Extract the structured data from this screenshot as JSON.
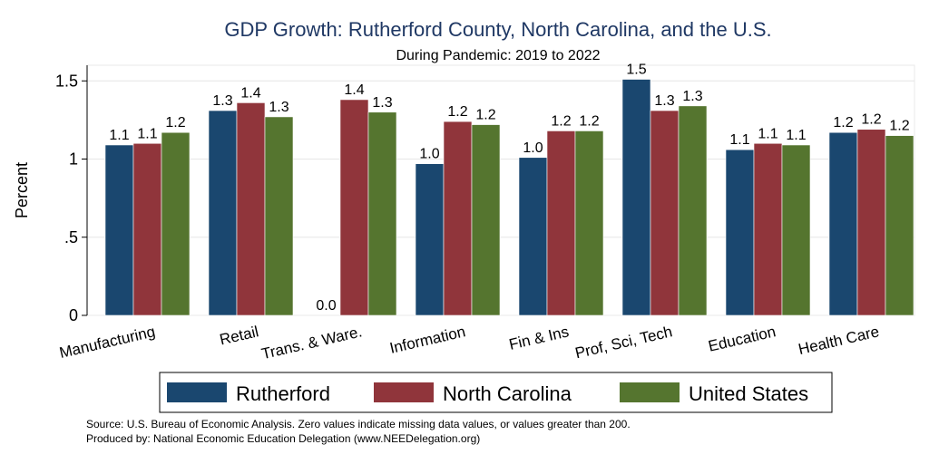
{
  "chart_data": {
    "type": "bar",
    "title": "GDP Growth: Rutherford County, North Carolina, and the U.S.",
    "subtitle": "During Pandemic: 2019 to 2022",
    "xlabel": "",
    "ylabel": "Percent",
    "ylim": [
      0,
      1.6
    ],
    "yticks": [
      0,
      0.5,
      1,
      1.5
    ],
    "ytick_labels": [
      "0",
      ".5",
      "1",
      "1.5"
    ],
    "grid": true,
    "legend_position": "bottom",
    "categories": [
      "Manufacturing",
      "Retail",
      "Trans. & Ware.",
      "Information",
      "Fin & Ins",
      "Prof, Sci, Tech",
      "Education",
      "Health Care"
    ],
    "series": [
      {
        "name": "Rutherford",
        "color": "#1a476f",
        "values": [
          1.09,
          1.31,
          0.0,
          0.97,
          1.01,
          1.51,
          1.06,
          1.17
        ],
        "labels": [
          "1.1",
          "1.3",
          "0.0",
          "1.0",
          "1.0",
          "1.5",
          "1.1",
          "1.2"
        ]
      },
      {
        "name": "North Carolina",
        "color": "#90353b",
        "values": [
          1.1,
          1.36,
          1.38,
          1.24,
          1.18,
          1.31,
          1.1,
          1.19
        ],
        "labels": [
          "1.1",
          "1.4",
          "1.4",
          "1.2",
          "1.2",
          "1.3",
          "1.1",
          "1.2"
        ]
      },
      {
        "name": "United States",
        "color": "#55752f",
        "values": [
          1.17,
          1.27,
          1.3,
          1.22,
          1.18,
          1.34,
          1.09,
          1.15
        ],
        "labels": [
          "1.2",
          "1.3",
          "1.3",
          "1.2",
          "1.2",
          "1.3",
          "1.1",
          "1.2"
        ]
      }
    ],
    "source_note": "Source: U.S. Bureau of Economic Analysis. Zero values indicate missing data values, or values greater than 200.",
    "produced_note": "Produced by: National Economic Education Delegation (www.NEEDelegation.org)"
  }
}
